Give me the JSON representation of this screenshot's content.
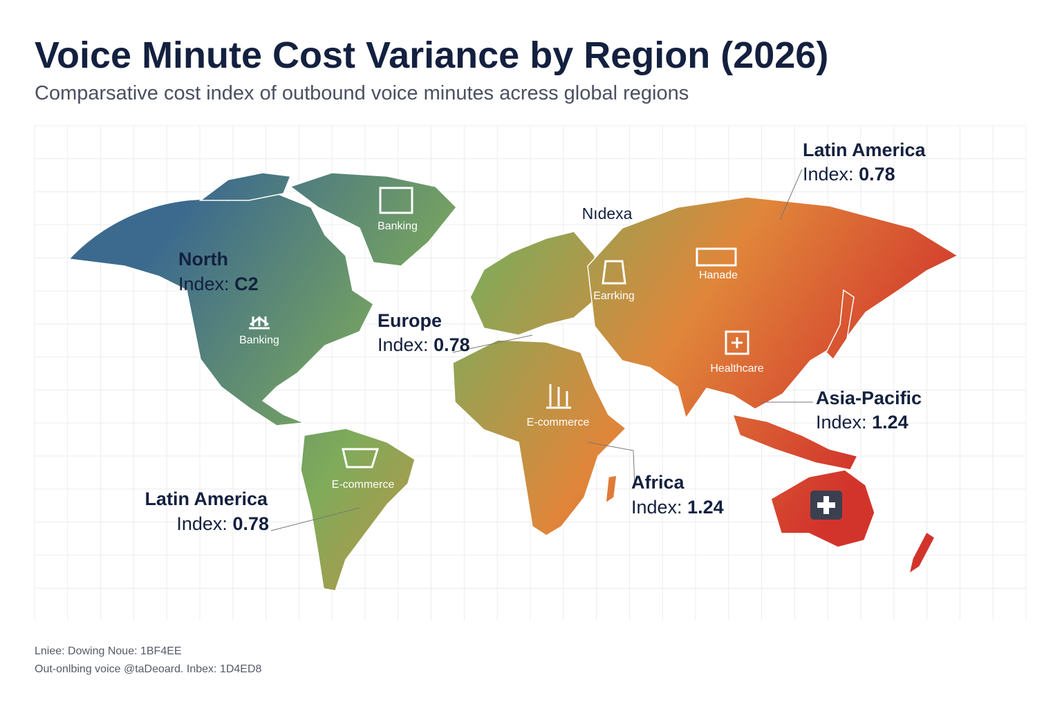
{
  "header": {
    "title": "Voice Minute Cost Variance by Region (2026)",
    "subtitle": "Comparsative cost index of outbound voice minutes acress global regions"
  },
  "callouts": [
    {
      "name": "North",
      "index_label": "Index:",
      "index": "C2"
    },
    {
      "name": "Europe",
      "index_label": "Index:",
      "index": 0.78
    },
    {
      "name": "Latin America",
      "index_label": "Index:",
      "index": 0.78
    },
    {
      "name": "Asia-Pacific",
      "index_label": "Index:",
      "index": 1.24
    },
    {
      "name": "Africa",
      "index_label": "Index:",
      "index": 1.24
    },
    {
      "name": "Latin America",
      "index_label": "Index:",
      "index": 0.78
    }
  ],
  "map_labels": [
    "Banking",
    "Banking",
    "Earrking",
    "Hanade",
    "Healthcare",
    "E-commerce",
    "E-commerce",
    "Nıdexa"
  ],
  "footer": {
    "lines": [
      "Lniee: Dowing Noue:  1BF4EE",
      "Out-onlbing voice @taDeoard. Inbex:  1D4ED8"
    ]
  }
}
